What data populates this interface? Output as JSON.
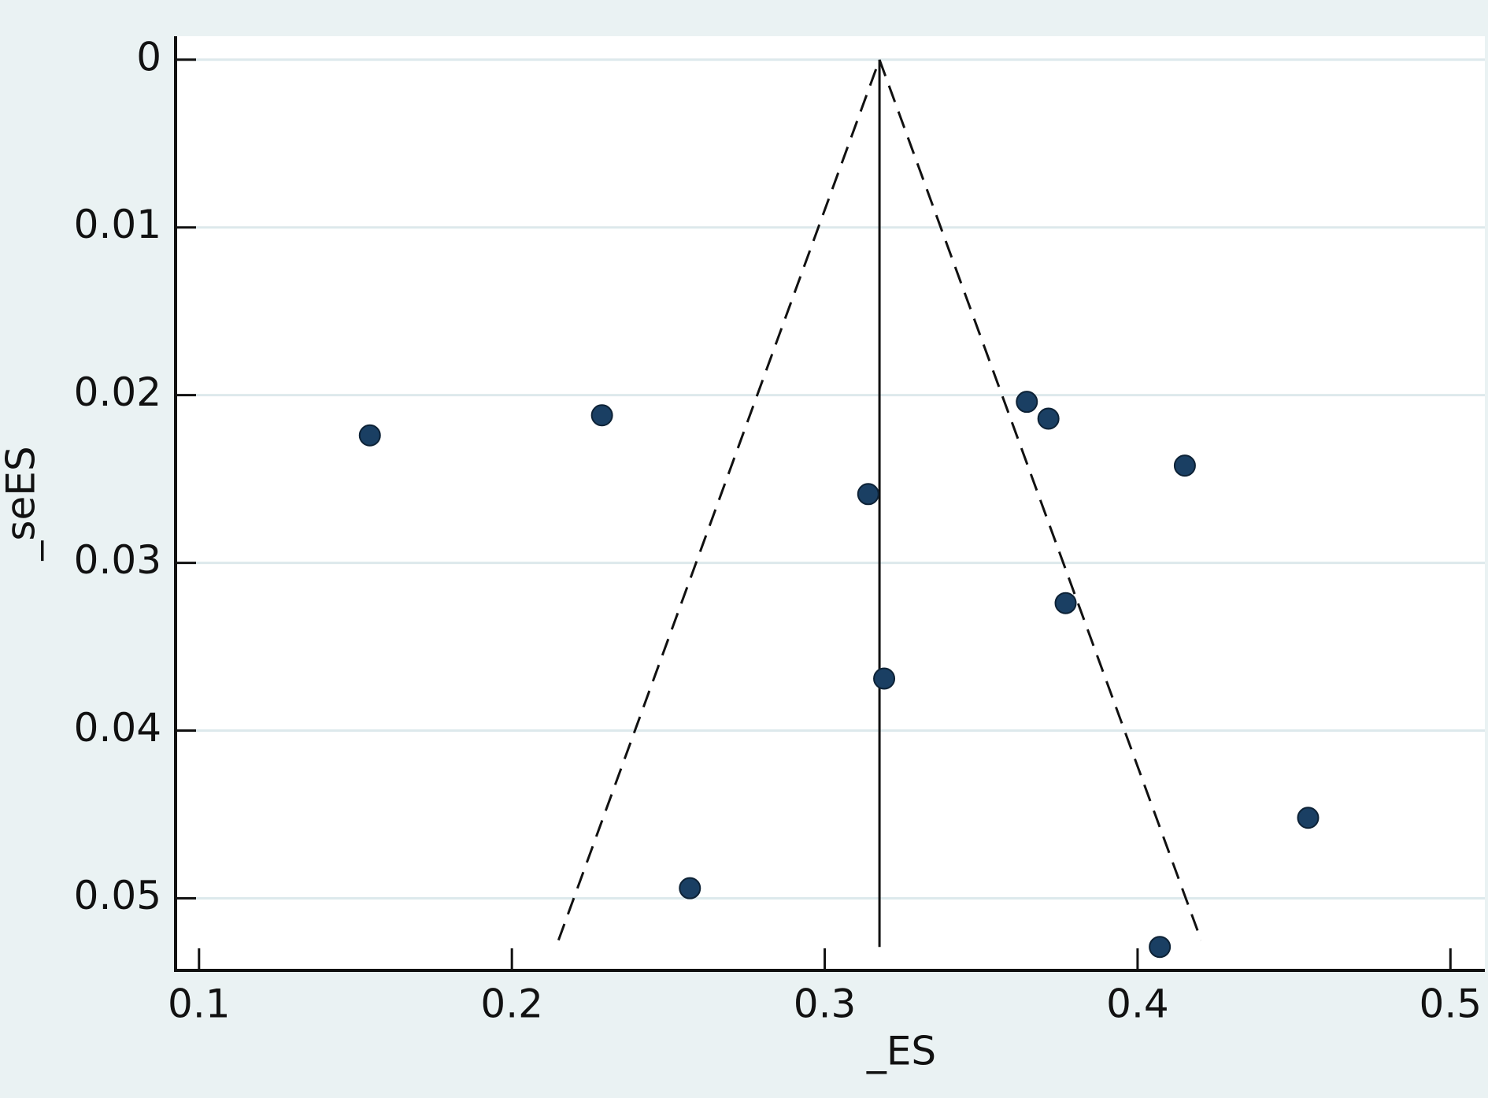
{
  "chart_data": {
    "type": "scatter",
    "x_label": "_ES",
    "y_label": "_seES",
    "series": [
      {
        "color": "#1a3f63",
        "x": [
          0.1546,
          0.2288,
          0.3646,
          0.3715,
          0.4151,
          0.3139,
          0.377,
          0.319,
          0.4545,
          0.2569,
          0.4071
        ],
        "values": [
          0.0224,
          0.0212,
          0.0204,
          0.0214,
          0.0242,
          0.0259,
          0.0324,
          0.0369,
          0.0452,
          0.0494,
          0.0529
        ]
      }
    ],
    "reference_line": {
      "x": [
        0.3175,
        0.3175
      ],
      "y": [
        0,
        0.0529
      ]
    },
    "funnel": {
      "x": [
        0.2149,
        0.3175,
        0.4203
      ],
      "y": [
        0.0525,
        0,
        0.0525
      ]
    },
    "xlim": [
      0.0925,
      0.511
    ],
    "ylim": [
      -0.0014,
      0.0543
    ],
    "y_inverted": true,
    "xticks": [
      0.1,
      0.2,
      0.3,
      0.4,
      0.5
    ],
    "yticks": [
      0,
      0.01,
      0.02,
      0.03,
      0.04,
      0.05
    ],
    "grid": true
  }
}
